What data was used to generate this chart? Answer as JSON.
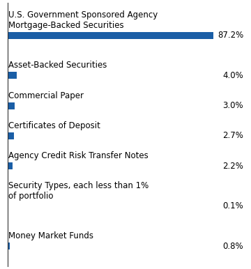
{
  "categories": [
    "U.S. Government Sponsored Agency\nMortgage-Backed Securities",
    "Asset-Backed Securities",
    "Commercial Paper",
    "Certificates of Deposit",
    "Agency Credit Risk Transfer Notes",
    "Security Types, each less than 1%\nof portfolio",
    "Money Market Funds"
  ],
  "values": [
    87.2,
    4.0,
    3.0,
    2.7,
    2.2,
    0.1,
    0.8
  ],
  "labels": [
    "87.2%",
    "4.0%",
    "3.0%",
    "2.7%",
    "2.2%",
    "0.1%",
    "0.8%"
  ],
  "bar_color": "#1a5ea6",
  "background_color": "#ffffff",
  "label_fontsize": 8.5,
  "value_fontsize": 8.5,
  "bar_height": 0.28,
  "xlim": [
    0,
    100
  ]
}
